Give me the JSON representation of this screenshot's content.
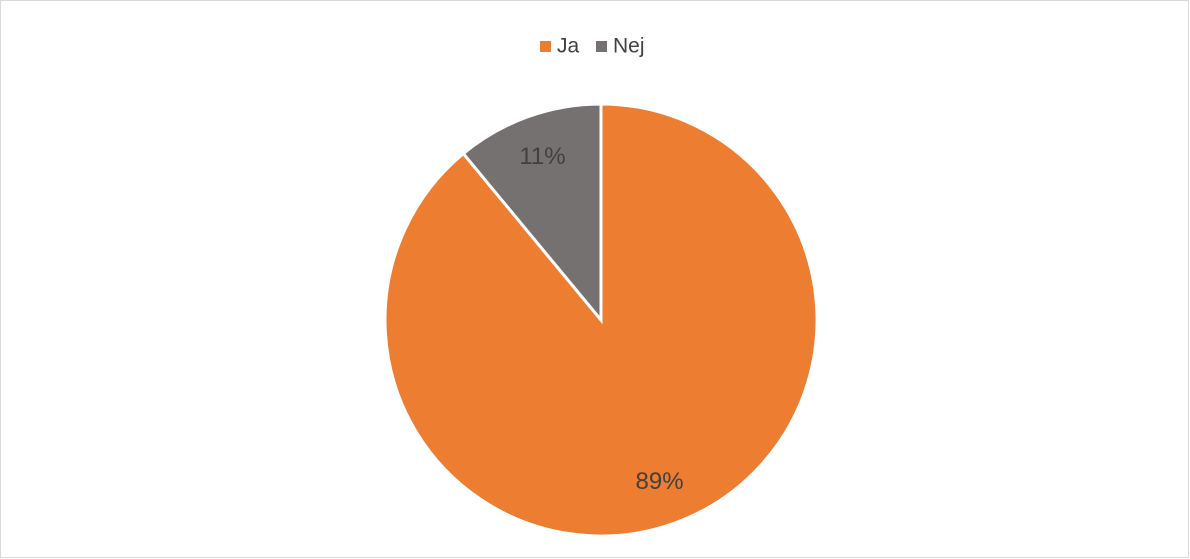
{
  "chart_data": {
    "type": "pie",
    "categories": [
      "Ja",
      "Nej"
    ],
    "values": [
      89,
      11
    ],
    "value_labels": [
      "89%",
      "11%"
    ],
    "colors": [
      "#ED7D31",
      "#767171"
    ],
    "legend": "top"
  }
}
